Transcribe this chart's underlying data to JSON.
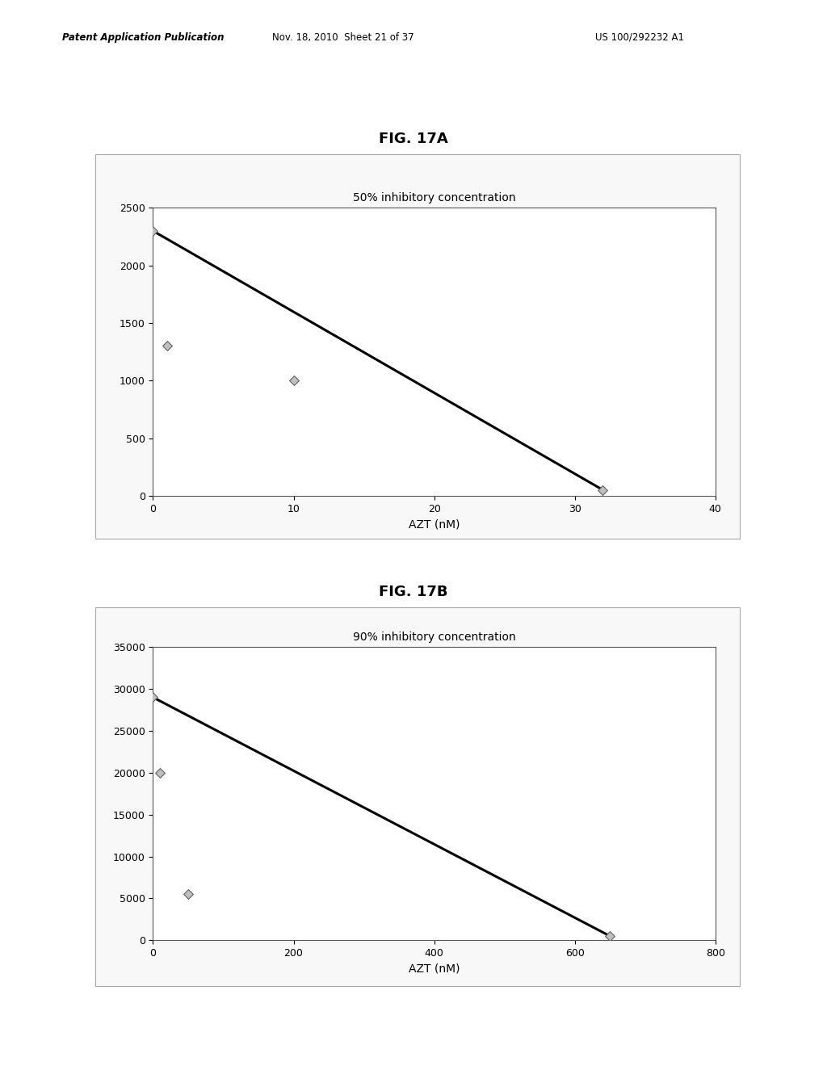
{
  "fig_title_a": "FIG. 17A",
  "fig_title_b": "FIG. 17B",
  "chart_a": {
    "title": "50% inhibitory concentration",
    "xlabel": "AZT (nM)",
    "xlim": [
      0,
      40
    ],
    "xticks": [
      0,
      10,
      20,
      30,
      40
    ],
    "ylim": [
      0,
      2500
    ],
    "yticks": [
      0,
      500,
      1000,
      1500,
      2000,
      2500
    ],
    "scatter_x": [
      0,
      1,
      10,
      32
    ],
    "scatter_y": [
      2300,
      1300,
      1000,
      50
    ],
    "line_x": [
      0,
      32
    ],
    "line_y": [
      2300,
      50
    ]
  },
  "chart_b": {
    "title": "90% inhibitory concentration",
    "xlabel": "AZT (nM)",
    "xlim": [
      0,
      800
    ],
    "xticks": [
      0,
      200,
      400,
      600,
      800
    ],
    "ylim": [
      0,
      35000
    ],
    "yticks": [
      0,
      5000,
      10000,
      15000,
      20000,
      25000,
      30000,
      35000
    ],
    "scatter_x": [
      0,
      10,
      50,
      650
    ],
    "scatter_y": [
      29000,
      20000,
      5500,
      500
    ],
    "line_x": [
      0,
      650
    ],
    "line_y": [
      29000,
      500
    ]
  },
  "bg_color": "#ffffff",
  "plot_bg_color": "#ffffff",
  "marker_style": "D",
  "marker_size": 6,
  "marker_color": "#c0c0c0",
  "marker_edge_color": "#606060",
  "line_color": "#000000",
  "line_width": 2.2,
  "title_fontsize": 10,
  "axis_fontsize": 10,
  "tick_fontsize": 9,
  "fig_label_fontsize": 13,
  "header_left": "Patent Application Publication",
  "header_center": "Nov. 18, 2010  Sheet 21 of 37",
  "header_right": "US 100/292232 A1",
  "header_fontsize": 8.5
}
